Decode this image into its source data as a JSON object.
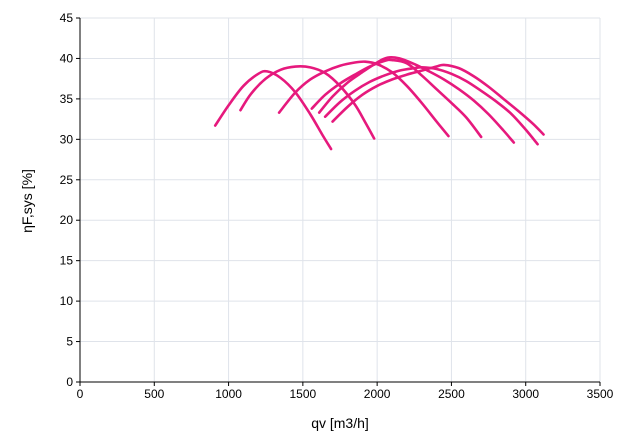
{
  "chart_data": {
    "type": "line",
    "xlabel": "qv [m3/h]",
    "ylabel": "ηF,sys [%]",
    "xlim": [
      0,
      3500
    ],
    "ylim": [
      0,
      45
    ],
    "xticks": [
      "0",
      "500",
      "1000",
      "1500",
      "2000",
      "2500",
      "3000",
      "3500"
    ],
    "yticks": [
      "0",
      "5",
      "10",
      "15",
      "20",
      "25",
      "30",
      "35",
      "40",
      "45"
    ],
    "grid": true,
    "legend": "none",
    "series_color": "#e6197d",
    "series": [
      {
        "x": [
          910,
          1000,
          1100,
          1200,
          1260,
          1350,
          1450,
          1550,
          1630,
          1690
        ],
        "y": [
          31.7,
          34.2,
          36.6,
          38.1,
          38.4,
          37.6,
          35.8,
          33.1,
          30.6,
          28.8
        ]
      },
      {
        "x": [
          1080,
          1150,
          1250,
          1350,
          1450,
          1550,
          1650,
          1750,
          1850,
          1920,
          1980
        ],
        "y": [
          33.6,
          35.6,
          37.5,
          38.6,
          39.0,
          38.9,
          38.2,
          36.6,
          34.3,
          32.1,
          30.1
        ]
      },
      {
        "x": [
          1340,
          1450,
          1550,
          1650,
          1750,
          1850,
          1920,
          2000,
          2100,
          2200,
          2300,
          2400,
          2480
        ],
        "y": [
          33.3,
          35.8,
          37.4,
          38.4,
          39.1,
          39.5,
          39.6,
          39.3,
          38.3,
          36.6,
          34.5,
          32.2,
          30.4
        ]
      },
      {
        "x": [
          1560,
          1650,
          1750,
          1850,
          1950,
          2050,
          2100,
          2200,
          2300,
          2400,
          2500,
          2600,
          2700
        ],
        "y": [
          33.8,
          35.5,
          36.9,
          38.0,
          39.0,
          39.7,
          39.8,
          39.4,
          37.9,
          36.2,
          34.5,
          32.7,
          30.3
        ]
      },
      {
        "x": [
          1610,
          1700,
          1800,
          1900,
          2000,
          2070,
          2150,
          2250,
          2350,
          2450,
          2550,
          2650,
          2750,
          2850,
          2920
        ],
        "y": [
          33.3,
          35.3,
          37.0,
          38.3,
          39.5,
          40.1,
          40.0,
          39.3,
          38.4,
          37.4,
          36.2,
          34.8,
          33.1,
          31.1,
          29.6
        ]
      },
      {
        "x": [
          1650,
          1750,
          1850,
          1950,
          2050,
          2150,
          2250,
          2300,
          2400,
          2500,
          2600,
          2700,
          2800,
          2900,
          3000,
          3080
        ],
        "y": [
          32.8,
          34.6,
          36.0,
          37.1,
          37.9,
          38.5,
          38.8,
          38.9,
          38.7,
          38.1,
          37.2,
          36.0,
          34.7,
          33.2,
          31.2,
          29.4
        ]
      },
      {
        "x": [
          1700,
          1800,
          1900,
          2000,
          2100,
          2200,
          2300,
          2400,
          2450,
          2550,
          2650,
          2750,
          2850,
          2950,
          3050,
          3120
        ],
        "y": [
          32.2,
          34.0,
          35.5,
          36.6,
          37.4,
          38.0,
          38.5,
          39.0,
          39.2,
          38.8,
          37.8,
          36.5,
          35.0,
          33.5,
          31.9,
          30.6
        ]
      }
    ]
  }
}
